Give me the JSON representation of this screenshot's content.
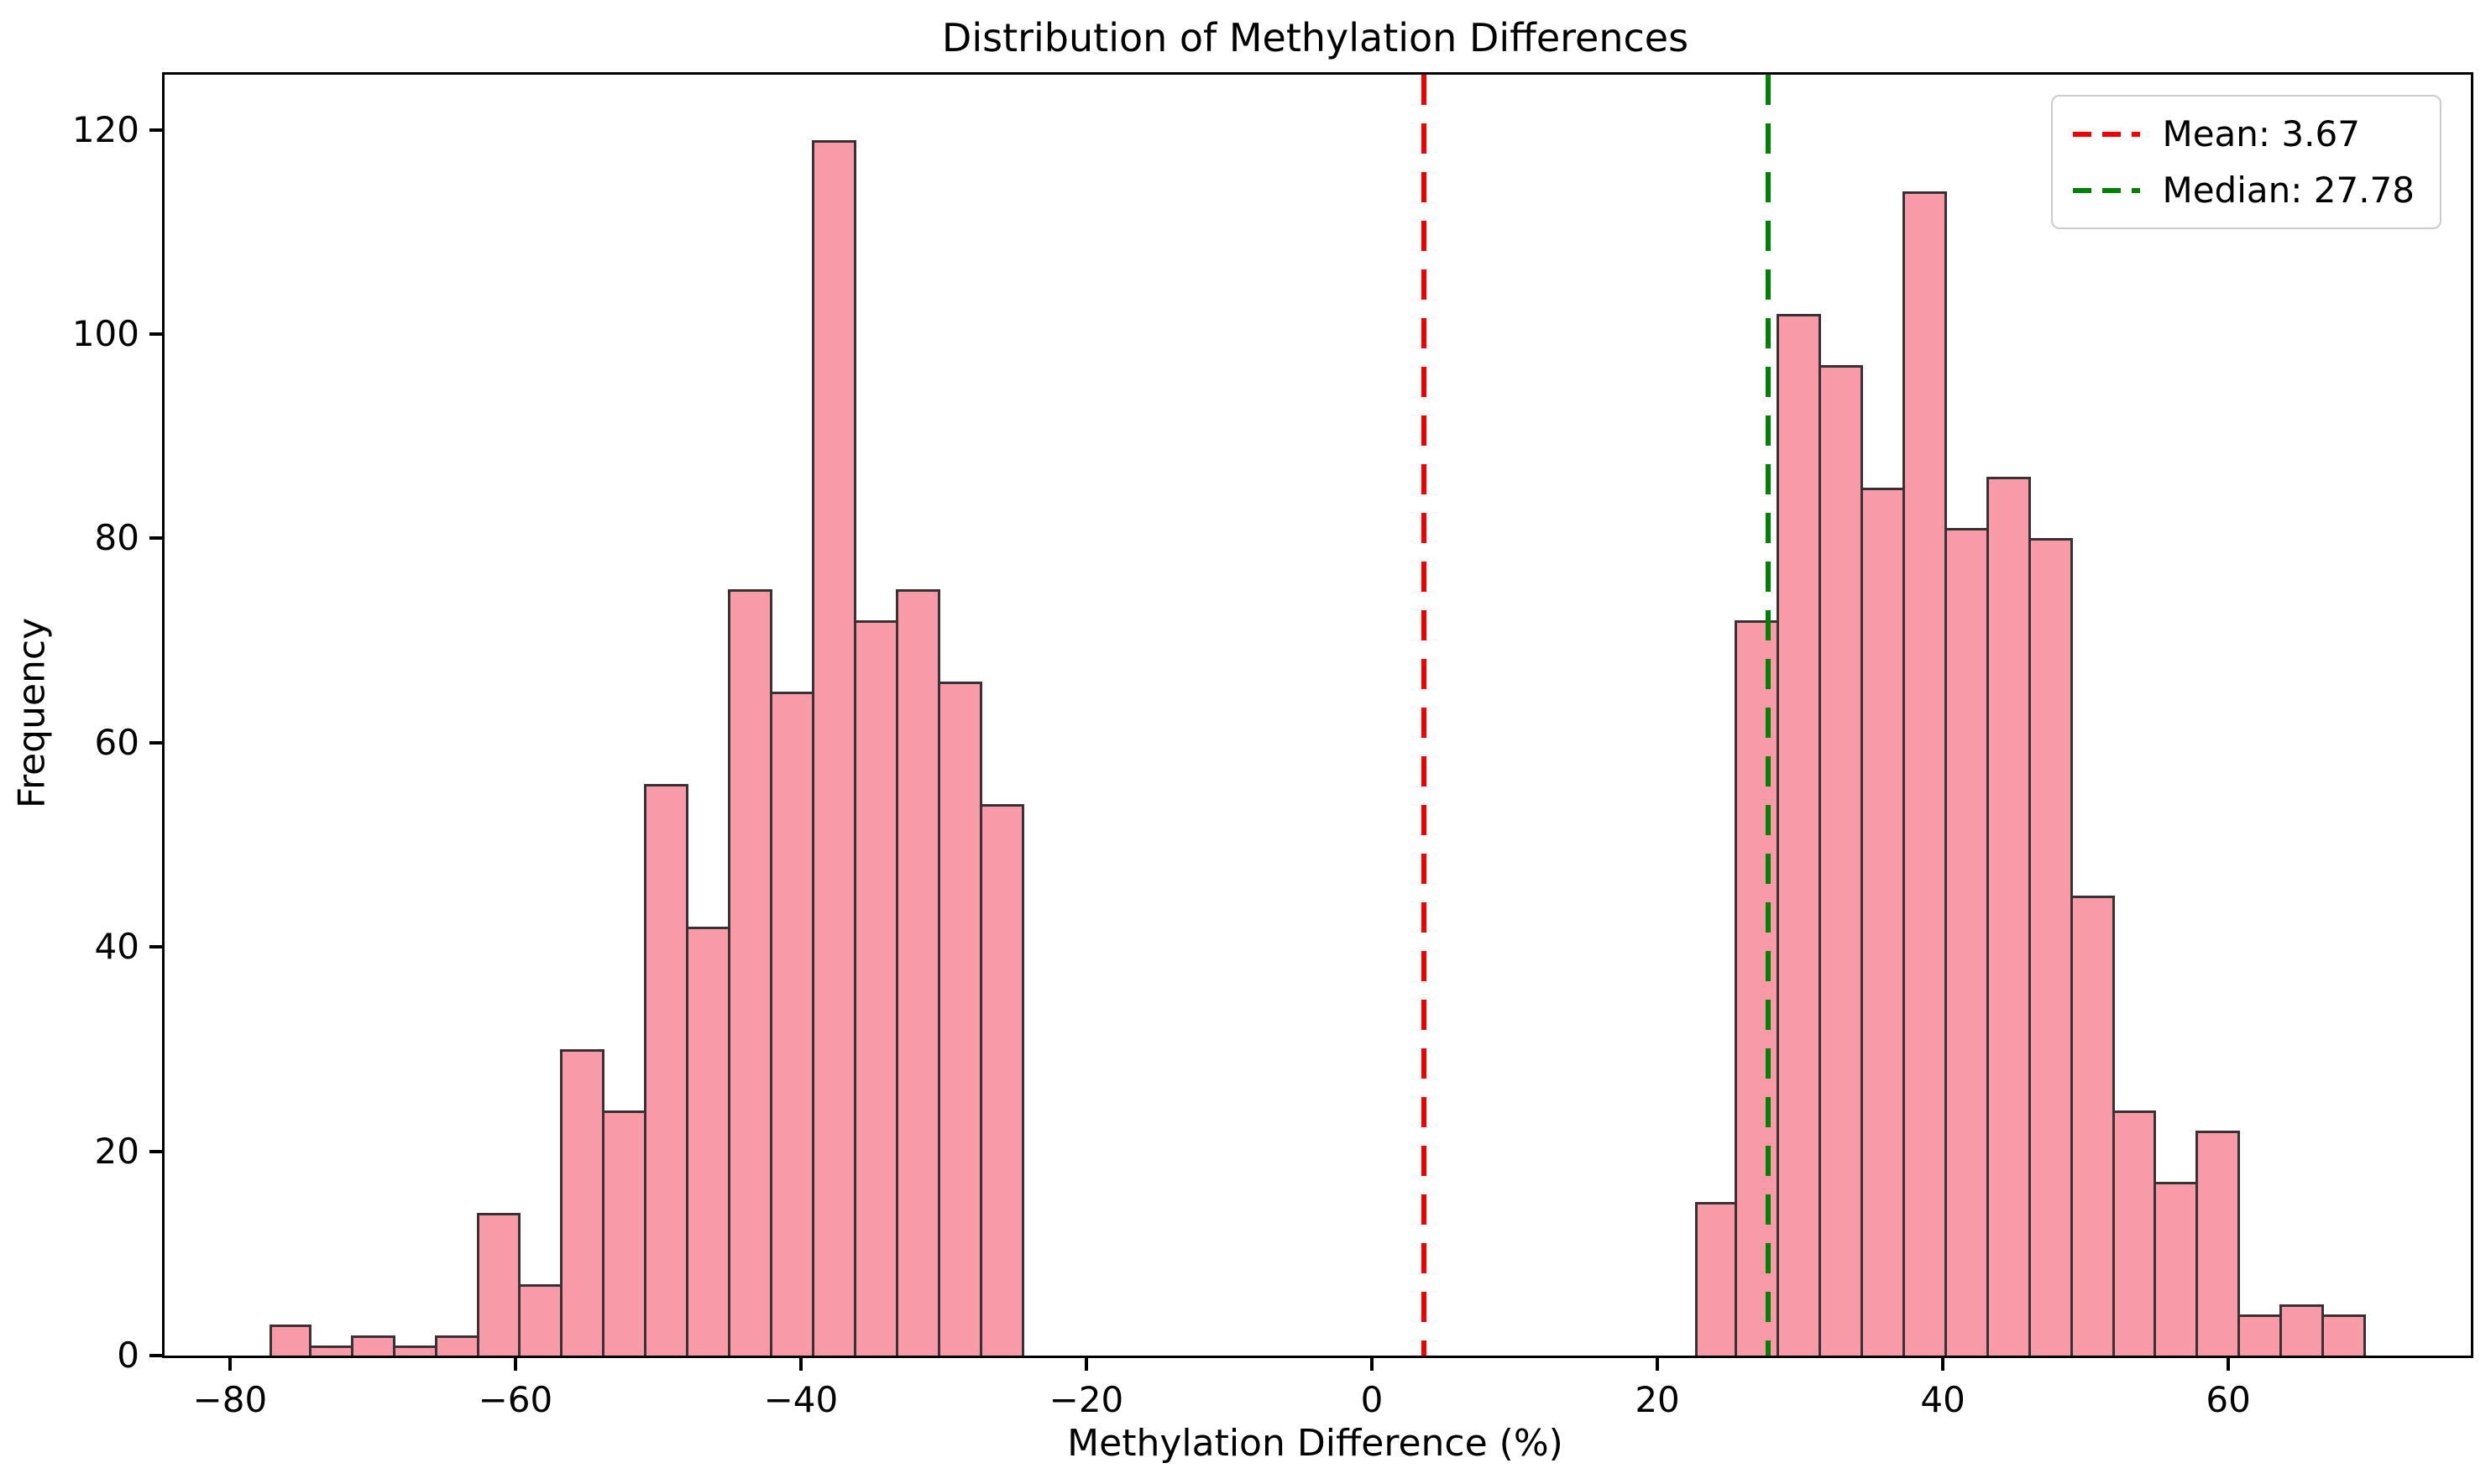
{
  "chart_data": {
    "type": "bar",
    "subtype": "histogram",
    "title": "Distribution of Methylation Differences",
    "xlabel": "Methylation Difference (%)",
    "ylabel": "Frequency",
    "bin_start": -77.24,
    "bin_width": 2.9378,
    "counts": [
      3,
      1,
      2,
      1,
      2,
      14,
      7,
      30,
      24,
      56,
      42,
      75,
      65,
      119,
      72,
      75,
      66,
      54,
      0,
      0,
      0,
      0,
      0,
      0,
      0,
      0,
      0,
      0,
      0,
      0,
      0,
      0,
      0,
      0,
      15,
      72,
      102,
      97,
      85,
      114,
      81,
      86,
      80,
      45,
      24,
      17,
      22,
      4,
      5,
      4
    ],
    "xlim": [
      -84.58,
      76.99
    ],
    "ylim": [
      0,
      125.4
    ],
    "x_ticks": [
      -80,
      -60,
      -40,
      -20,
      0,
      20,
      40,
      60
    ],
    "x_tick_labels": [
      "−80",
      "−60",
      "−40",
      "−20",
      "0",
      "20",
      "40",
      "60"
    ],
    "y_ticks": [
      0,
      20,
      40,
      60,
      80,
      100,
      120
    ],
    "y_tick_labels": [
      "0",
      "20",
      "40",
      "60",
      "80",
      "100",
      "120"
    ],
    "grid": false,
    "legend_position": "upper right",
    "mean_line": {
      "value": 3.67,
      "label": "Mean: 3.67",
      "color": "#ee0000",
      "style": "dashed"
    },
    "median_line": {
      "value": 27.78,
      "label": "Median: 27.78",
      "color": "#008000",
      "style": "dashed"
    },
    "colors": {
      "bar_fill": "#f99aa8",
      "bar_edge": "#3a3134",
      "spine": "#000000",
      "background": "#ffffff",
      "legend_border": "#cccccc"
    }
  }
}
